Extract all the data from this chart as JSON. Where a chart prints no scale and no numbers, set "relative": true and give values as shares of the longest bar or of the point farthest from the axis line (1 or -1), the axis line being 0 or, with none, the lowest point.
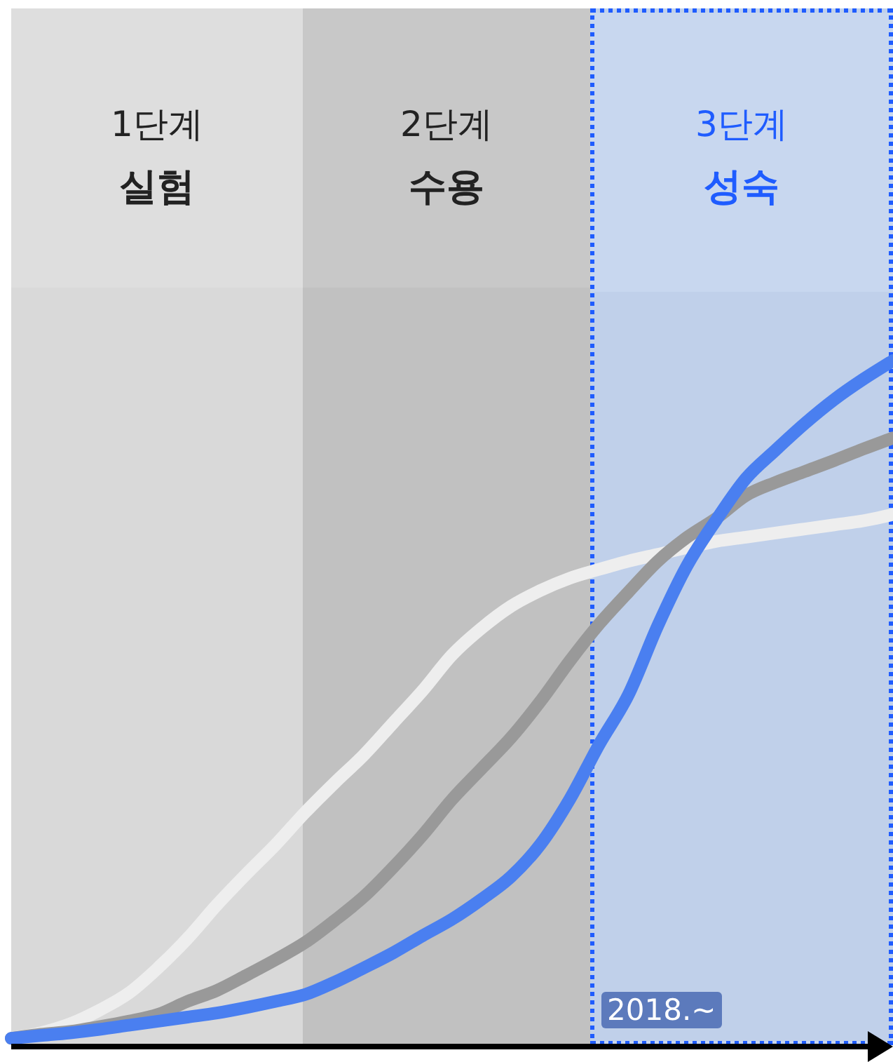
{
  "chart_data": {
    "type": "line",
    "relative": true,
    "categories": [
      null,
      null,
      null,
      null,
      null,
      null,
      null,
      null,
      null,
      null,
      null,
      null,
      null,
      null,
      null,
      null,
      null,
      null,
      null,
      null,
      null,
      null,
      null,
      null,
      null,
      null,
      null,
      null,
      null,
      null,
      null
    ],
    "series": [
      {
        "color": "#eeeeee",
        "values": [
          0.01,
          0.018,
          0.031,
          0.051,
          0.076,
          0.113,
          0.156,
          0.205,
          0.25,
          0.293,
          0.34,
          0.383,
          0.424,
          0.471,
          0.518,
          0.57,
          0.609,
          0.641,
          0.664,
          0.682,
          0.695,
          0.707,
          0.717,
          0.727,
          0.736,
          0.742,
          0.748,
          0.754,
          0.76,
          0.766,
          0.775
        ]
      },
      {
        "color": "#999999",
        "values": [
          0.01,
          0.016,
          0.02,
          0.027,
          0.035,
          0.045,
          0.064,
          0.08,
          0.102,
          0.125,
          0.15,
          0.182,
          0.217,
          0.26,
          0.307,
          0.359,
          0.404,
          0.449,
          0.502,
          0.561,
          0.615,
          0.662,
          0.707,
          0.742,
          0.77,
          0.803,
          0.822,
          0.838,
          0.854,
          0.871,
          0.887
        ]
      },
      {
        "color": "#4a7ff0",
        "values": [
          0.01,
          0.014,
          0.018,
          0.023,
          0.029,
          0.035,
          0.041,
          0.047,
          0.055,
          0.064,
          0.074,
          0.092,
          0.113,
          0.135,
          0.16,
          0.184,
          0.213,
          0.246,
          0.293,
          0.359,
          0.439,
          0.512,
          0.613,
          0.701,
          0.768,
          0.828,
          0.869,
          0.908,
          0.943,
          0.973,
          1
        ]
      }
    ],
    "annotations": [
      "1단계 실험",
      "2단계 수용",
      "3단계 성숙",
      "2018.~"
    ]
  }
}
